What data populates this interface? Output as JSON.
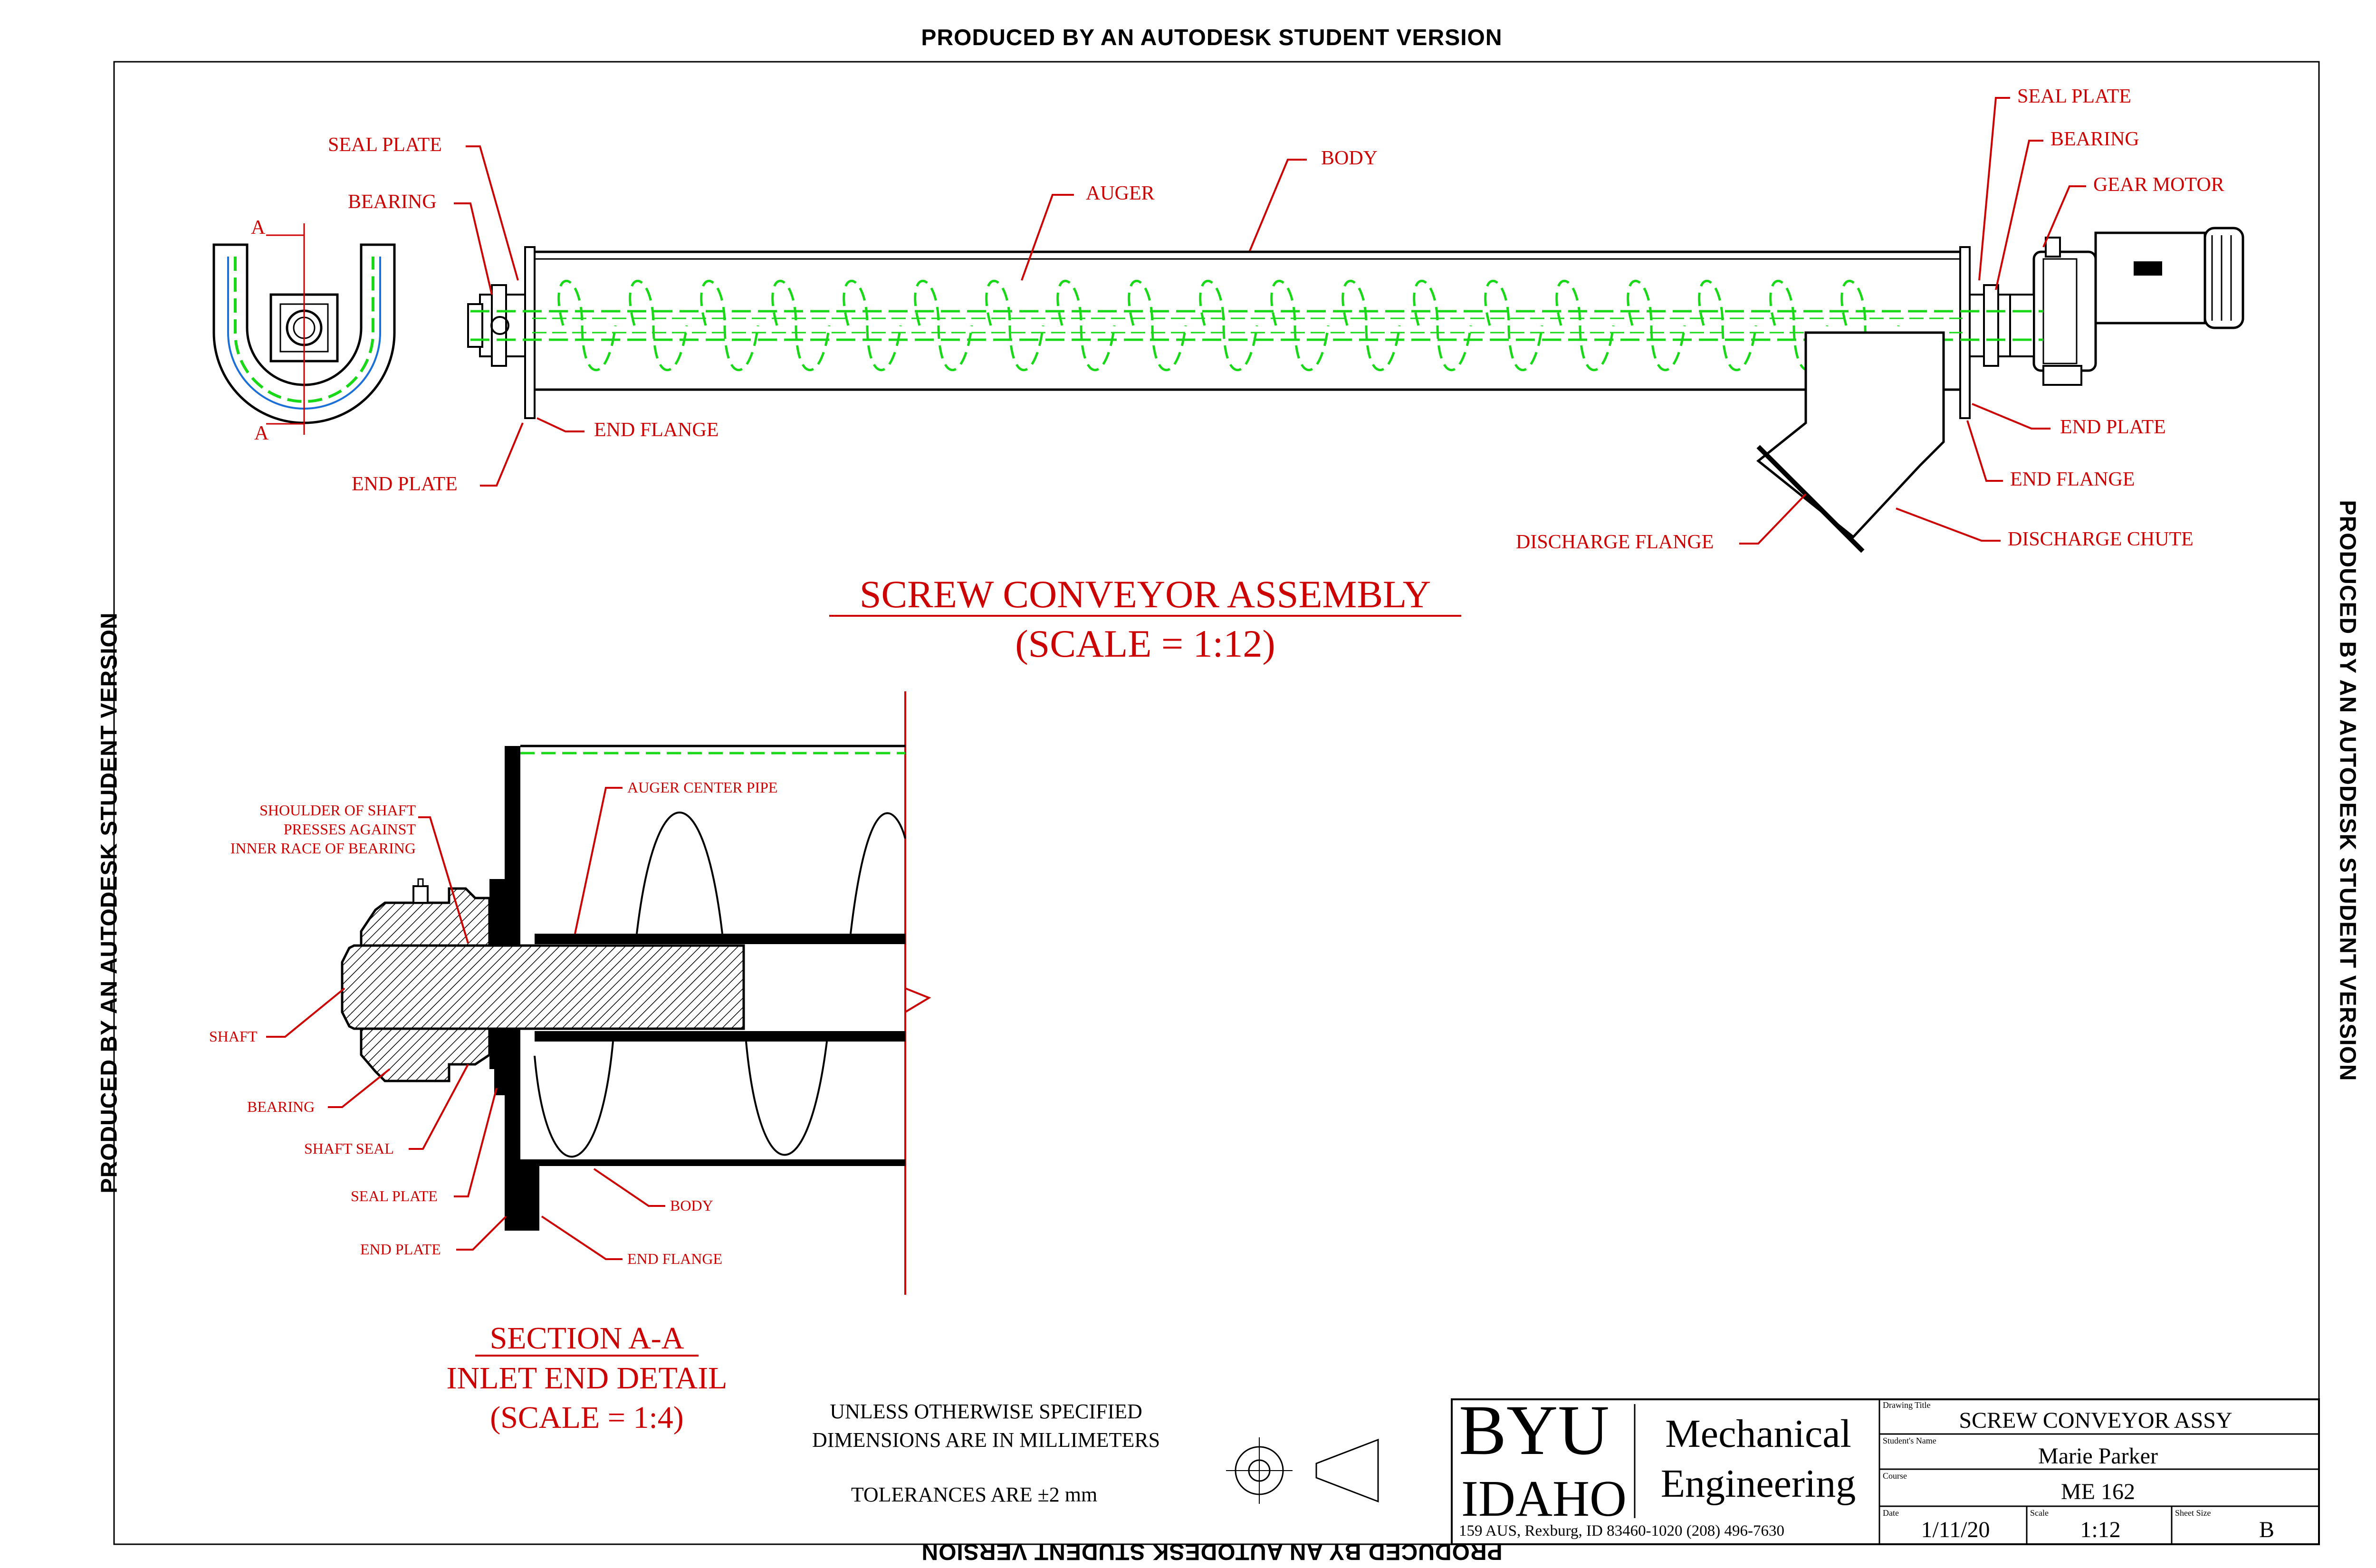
{
  "watermark": "PRODUCED BY AN AUTODESK STUDENT VERSION",
  "assembly": {
    "title": "SCREW CONVEYOR ASSEMBLY",
    "scale": "(SCALE = 1:12)",
    "labels": {
      "seal_plate_left": "SEAL PLATE",
      "bearing_left": "BEARING",
      "auger": "AUGER",
      "body": "BODY",
      "end_flange_left": "END FLANGE",
      "end_plate_left": "END PLATE",
      "seal_plate_right": "SEAL PLATE",
      "bearing_right": "BEARING",
      "gear_motor": "GEAR MOTOR",
      "end_plate_right": "END PLATE",
      "end_flange_right": "END FLANGE",
      "discharge_flange": "DISCHARGE FLANGE",
      "discharge_chute": "DISCHARGE CHUTE"
    },
    "section_mark": "A"
  },
  "section": {
    "title": "SECTION A-A",
    "subtitle": "INLET END DETAIL",
    "scale": "(SCALE = 1:4)",
    "labels": {
      "shoulder_1": "SHOULDER OF SHAFT",
      "shoulder_2": "PRESSES AGAINST",
      "shoulder_3": "INNER RACE OF BEARING",
      "auger_center_pipe": "AUGER CENTER PIPE",
      "shaft": "SHAFT",
      "bearing": "BEARING",
      "shaft_seal": "SHAFT SEAL",
      "seal_plate": "SEAL PLATE",
      "end_plate": "END PLATE",
      "body": "BODY",
      "end_flange": "END FLANGE"
    }
  },
  "notes": {
    "line1": "UNLESS OTHERWISE SPECIFIED",
    "line2": "DIMENSIONS ARE IN MILLIMETERS",
    "tolerance": "TOLERANCES ARE ±2 mm"
  },
  "title_block": {
    "byu": "BYU",
    "idaho": "IDAHO",
    "dept_1": "Mechanical",
    "dept_2": "Engineering",
    "address": "159 AUS, Rexburg, ID 83460-1020   (208) 496-7630",
    "drawing_title_label": "Drawing Title",
    "drawing_title": "SCREW CONVEYOR ASSY",
    "student_label": "Student's Name",
    "student": "Marie Parker",
    "course_label": "Course",
    "course": "ME 162",
    "date_label": "Date",
    "date": "1/11/20",
    "scale_label": "Scale",
    "scale": "1:12",
    "sheet_label": "Sheet Size",
    "sheet": "B"
  },
  "colors": {
    "label": "#cc0000",
    "auger": "#18d818",
    "line": "#000000"
  }
}
